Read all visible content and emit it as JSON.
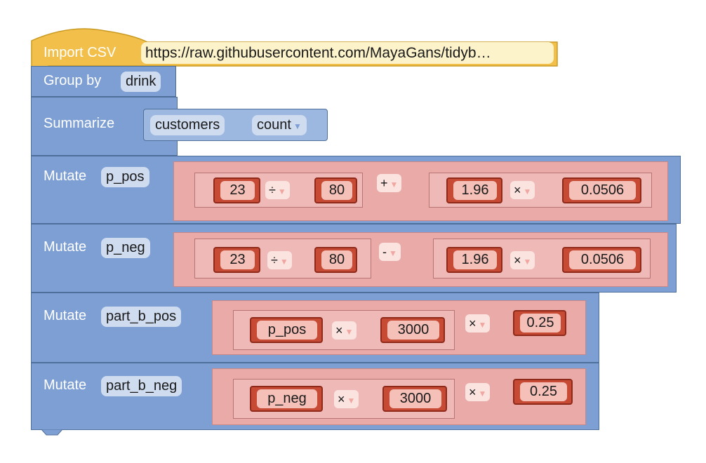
{
  "import_block": {
    "label": "Import CSV",
    "url": "https://raw.githubusercontent.com/MayaGans/tidyb…"
  },
  "group_block": {
    "label": "Group by",
    "field": "drink"
  },
  "summarize_block": {
    "label": "Summarize",
    "column": "customers",
    "function": "count"
  },
  "mutate_blocks": [
    {
      "label": "Mutate",
      "name": "p_pos",
      "left": {
        "a": "23",
        "op": "÷",
        "b": "80"
      },
      "op": "+",
      "right": {
        "a": "1.96",
        "op": "×",
        "b": "0.0506"
      }
    },
    {
      "label": "Mutate",
      "name": "p_neg",
      "left": {
        "a": "23",
        "op": "÷",
        "b": "80"
      },
      "op": "-",
      "right": {
        "a": "1.96",
        "op": "×",
        "b": "0.0506"
      }
    },
    {
      "label": "Mutate",
      "name": "part_b_pos",
      "left": {
        "a": "p_pos",
        "op": "×",
        "b": "3000"
      },
      "op": "×",
      "right": {
        "b": "0.25"
      }
    },
    {
      "label": "Mutate",
      "name": "part_b_neg",
      "left": {
        "a": "p_neg",
        "op": "×",
        "b": "3000"
      },
      "op": "×",
      "right": {
        "b": "0.25"
      }
    }
  ],
  "colors": {
    "import": "#f2c04a",
    "blocks": "#7d9fd3",
    "math_outer": "#e9aaa8",
    "number": "#c64a34"
  }
}
